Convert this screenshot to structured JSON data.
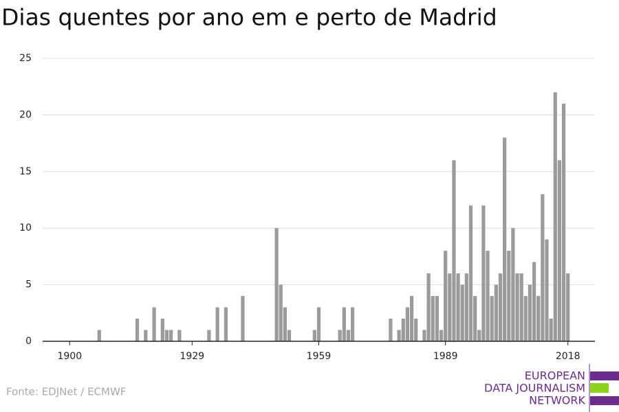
{
  "chart_data": {
    "type": "bar",
    "title": "Dias quentes por ano em e perto de Madrid",
    "x": [
      1900,
      1901,
      1902,
      1903,
      1904,
      1905,
      1906,
      1907,
      1908,
      1909,
      1910,
      1911,
      1912,
      1913,
      1914,
      1915,
      1916,
      1917,
      1918,
      1919,
      1920,
      1921,
      1922,
      1923,
      1924,
      1925,
      1926,
      1927,
      1928,
      1929,
      1930,
      1931,
      1932,
      1933,
      1934,
      1935,
      1936,
      1937,
      1938,
      1939,
      1940,
      1941,
      1942,
      1943,
      1944,
      1945,
      1946,
      1947,
      1948,
      1949,
      1950,
      1951,
      1952,
      1953,
      1954,
      1955,
      1956,
      1957,
      1958,
      1959,
      1960,
      1961,
      1962,
      1963,
      1964,
      1965,
      1966,
      1967,
      1968,
      1969,
      1970,
      1971,
      1972,
      1973,
      1974,
      1975,
      1976,
      1977,
      1978,
      1979,
      1980,
      1981,
      1982,
      1983,
      1984,
      1985,
      1986,
      1987,
      1988,
      1989,
      1990,
      1991,
      1992,
      1993,
      1994,
      1995,
      1996,
      1997,
      1998,
      1999,
      2000,
      2001,
      2002,
      2003,
      2004,
      2005,
      2006,
      2007,
      2008,
      2009,
      2010,
      2011,
      2012,
      2013,
      2014,
      2015,
      2016,
      2017,
      2018
    ],
    "values": [
      0,
      0,
      0,
      0,
      0,
      0,
      0,
      1,
      0,
      0,
      0,
      0,
      0,
      0,
      0,
      0,
      2,
      0,
      1,
      0,
      3,
      0,
      2,
      1,
      1,
      0,
      1,
      0,
      0,
      0,
      0,
      0,
      0,
      1,
      0,
      3,
      0,
      3,
      0,
      0,
      0,
      4,
      0,
      0,
      0,
      0,
      0,
      0,
      0,
      10,
      5,
      3,
      1,
      0,
      0,
      0,
      0,
      0,
      1,
      3,
      0,
      0,
      0,
      0,
      1,
      3,
      1,
      3,
      0,
      0,
      0,
      0,
      0,
      0,
      0,
      0,
      2,
      0,
      1,
      2,
      3,
      4,
      2,
      0,
      1,
      6,
      4,
      4,
      1,
      8,
      6,
      16,
      6,
      5,
      6,
      12,
      4,
      1,
      12,
      8,
      4,
      5,
      6,
      18,
      8,
      10,
      6,
      6,
      4,
      5,
      7,
      4,
      13,
      9,
      2,
      22,
      16,
      21,
      6
    ],
    "color": "#9b9b9b",
    "xlim": [
      1893.6,
      2024.4
    ],
    "xticks": [
      1900,
      1929,
      1959,
      1989,
      2018
    ],
    "ylim": [
      0,
      25
    ],
    "yticks": [
      0,
      5,
      10,
      15,
      20,
      25
    ],
    "grid": true,
    "source": "Fonte: EDJNet / ECMWF"
  },
  "logo": {
    "lines": [
      "EUROPEAN",
      "DATA JOURNALISM",
      "NETWORK"
    ]
  }
}
